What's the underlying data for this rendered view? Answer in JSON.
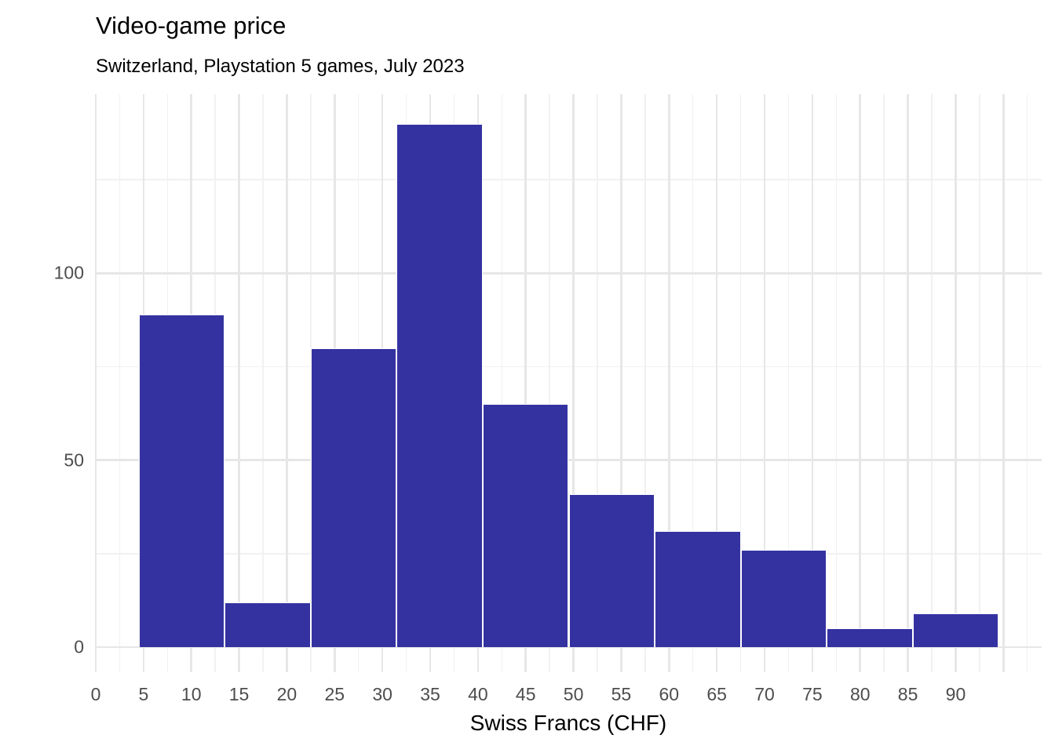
{
  "chart_data": {
    "type": "bar",
    "subtype": "histogram",
    "title": "Video-game price",
    "subtitle": "Switzerland, Playstation 5 games, July 2023",
    "xlabel": "Swiss Francs (CHF)",
    "ylabel": "",
    "bins": {
      "start": 4.5,
      "width": 9,
      "edges": [
        4.5,
        13.5,
        22.5,
        31.5,
        40.5,
        49.5,
        58.5,
        67.5,
        76.5,
        85.5,
        94.5
      ],
      "counts": [
        89,
        12,
        80,
        140,
        65,
        41,
        31,
        26,
        5,
        9
      ]
    },
    "x_ticks": [
      0,
      5,
      10,
      15,
      20,
      25,
      30,
      35,
      40,
      45,
      50,
      55,
      60,
      65,
      70,
      75,
      80,
      85,
      90
    ],
    "x_minor_gridlines": [
      2.5,
      7.5,
      12.5,
      17.5,
      22.5,
      27.5,
      32.5,
      37.5,
      42.5,
      47.5,
      52.5,
      57.5,
      62.5,
      67.5,
      72.5,
      77.5,
      82.5,
      87.5,
      92.5,
      97.5
    ],
    "x_major_gridlines": [
      0,
      5,
      10,
      15,
      20,
      25,
      30,
      35,
      40,
      45,
      50,
      55,
      60,
      65,
      70,
      75,
      80,
      85,
      90,
      95
    ],
    "y_ticks": [
      0,
      50,
      100
    ],
    "y_major_gridlines": [
      0,
      50,
      100
    ],
    "y_minor_gridlines": [
      25,
      75,
      125
    ],
    "x_domain": [
      0,
      99
    ],
    "y_domain": [
      -6.7,
      147.9
    ],
    "grid": "major and minor, light gray on white, no axis lines, no tick marks",
    "legend_position": "none",
    "colors": {
      "bar_fill": "#3432a1",
      "bar_border": "#ffffff",
      "grid_major": "#e7e7e7",
      "grid_minor": "#f1f1f1",
      "tick_text": "#4d4d4d",
      "title_text": "#000000",
      "axis_title_text": "#000000",
      "background": "#ffffff"
    }
  }
}
